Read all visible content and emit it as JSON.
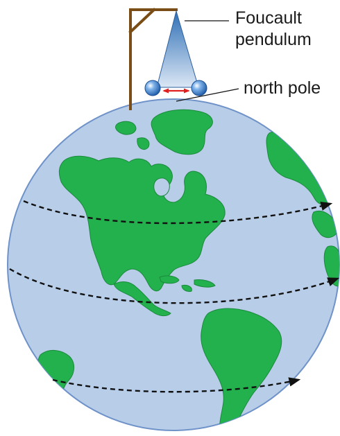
{
  "labels": {
    "pendulum_line1": "Foucault",
    "pendulum_line2": "pendulum",
    "north_pole": "north pole"
  },
  "icons": {
    "globe": "earth-globe-icon",
    "pendulum": "foucault-pendulum-icon",
    "gallows": "pendulum-support-frame-icon",
    "rotation_arrows": "dashed-rotation-arrow-icon",
    "swing_arrow": "double-headed-swing-arrow-icon"
  },
  "colors": {
    "ocean": "#b8cde8",
    "ocean_edge": "#6f92c9",
    "land": "#22b14c",
    "land_edge": "#1b8a3c",
    "frame": "#7a4d17",
    "cone_top": "#2f6fb5",
    "cone_bottom": "#d9e6f4",
    "bob": "#2d73c9",
    "swing_arrow": "#e02020",
    "rotation_arrow": "#111111",
    "leader_line": "#111111"
  }
}
